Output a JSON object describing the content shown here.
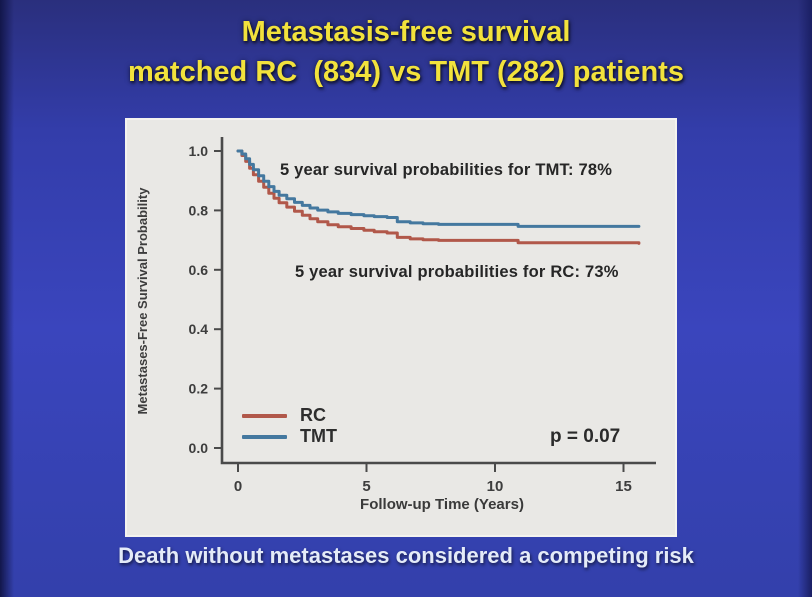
{
  "slide": {
    "title_line1": "Metastasis-free survival",
    "title_line2": "matched RC  (834) vs TMT (282) patients",
    "title_color": "#f2e23c",
    "caption": "Death without metastases considered a competing risk"
  },
  "chart_data": {
    "type": "line",
    "style": "kaplan-meier-step",
    "title": "",
    "xlabel": "Follow-up Time (Years)",
    "ylabel": "Metastases-Free Survival Probability",
    "xlim": [
      0,
      16.3
    ],
    "ylim": [
      0,
      1.0
    ],
    "grid": false,
    "legend_position": "lower-left",
    "xticks": {
      "labels": [
        "0",
        "5",
        "10",
        "15"
      ],
      "values": [
        0,
        5,
        10,
        15
      ]
    },
    "yticks": {
      "labels": [
        "0.0",
        "0.2",
        "0.4",
        "0.6",
        "0.8",
        "1.0"
      ],
      "values": [
        0,
        0.2,
        0.4,
        0.6,
        0.8,
        1.0
      ]
    },
    "annotations": {
      "tmt": "5 year survival probabilities for TMT: 78%",
      "rc": "5 year survival probabilities for RC: 73%",
      "p_value": "p = 0.07"
    },
    "series": [
      {
        "name": "RC",
        "n_patients": 834,
        "five_year_survival_pct": 73,
        "color": "#b1584a",
        "points": [
          [
            0,
            1.0
          ],
          [
            0.15,
            0.985
          ],
          [
            0.3,
            0.965
          ],
          [
            0.45,
            0.942
          ],
          [
            0.6,
            0.92
          ],
          [
            0.8,
            0.898
          ],
          [
            1.0,
            0.878
          ],
          [
            1.2,
            0.858
          ],
          [
            1.4,
            0.841
          ],
          [
            1.6,
            0.826
          ],
          [
            1.9,
            0.811
          ],
          [
            2.2,
            0.797
          ],
          [
            2.5,
            0.784
          ],
          [
            2.8,
            0.772
          ],
          [
            3.1,
            0.762
          ],
          [
            3.5,
            0.752
          ],
          [
            3.9,
            0.745
          ],
          [
            4.4,
            0.739
          ],
          [
            4.9,
            0.733
          ],
          [
            5.3,
            0.728
          ],
          [
            5.8,
            0.724
          ],
          [
            6.2,
            0.709
          ],
          [
            6.7,
            0.704
          ],
          [
            7.2,
            0.701
          ],
          [
            7.8,
            0.699
          ],
          [
            10.9,
            0.691
          ],
          [
            15.6,
            0.689
          ]
        ]
      },
      {
        "name": "TMT",
        "n_patients": 282,
        "five_year_survival_pct": 78,
        "color": "#44789f",
        "points": [
          [
            0,
            1.0
          ],
          [
            0.15,
            0.99
          ],
          [
            0.3,
            0.974
          ],
          [
            0.45,
            0.955
          ],
          [
            0.6,
            0.937
          ],
          [
            0.8,
            0.917
          ],
          [
            1.0,
            0.898
          ],
          [
            1.2,
            0.88
          ],
          [
            1.4,
            0.864
          ],
          [
            1.6,
            0.851
          ],
          [
            1.9,
            0.839
          ],
          [
            2.2,
            0.827
          ],
          [
            2.5,
            0.817
          ],
          [
            2.8,
            0.808
          ],
          [
            3.1,
            0.801
          ],
          [
            3.5,
            0.795
          ],
          [
            3.9,
            0.79
          ],
          [
            4.4,
            0.786
          ],
          [
            4.9,
            0.782
          ],
          [
            5.3,
            0.779
          ],
          [
            5.8,
            0.776
          ],
          [
            6.2,
            0.762
          ],
          [
            6.7,
            0.758
          ],
          [
            7.2,
            0.755
          ],
          [
            7.8,
            0.753
          ],
          [
            10.9,
            0.746
          ],
          [
            15.6,
            0.746
          ]
        ]
      }
    ]
  }
}
